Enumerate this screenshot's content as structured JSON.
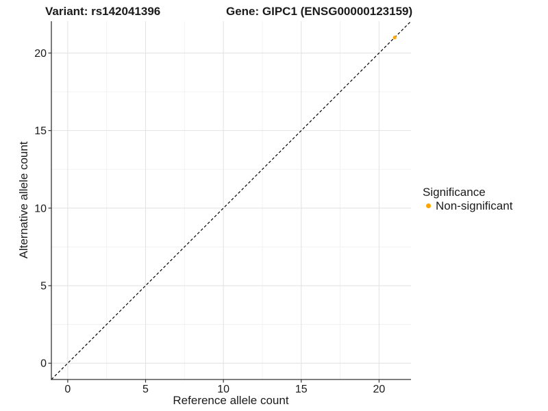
{
  "header": {
    "variant_title": "Variant: rs142041396",
    "gene_title": "Gene: GIPC1 (ENSG00000123159)"
  },
  "legend": {
    "title": "Significance",
    "items": [
      {
        "label": "Non-significant",
        "color": "#FFA500",
        "marker": "circle-icon"
      }
    ]
  },
  "colors": {
    "point": "#FFA500",
    "axis_line": "#333333",
    "tick_text": "#1a1a1a",
    "grid_major": "#e3e3e3",
    "grid_minor": "#f0f0f0",
    "reference_line": "#000000",
    "background": "#ffffff"
  },
  "chart_data": {
    "type": "scatter",
    "title": "Variant: rs142041396    Gene: GIPC1 (ENSG00000123159)",
    "xlabel": "Reference allele count",
    "ylabel": "Alternative allele count",
    "xlim": [
      -1.05,
      22.05
    ],
    "ylim": [
      -1.05,
      22.05
    ],
    "x_ticks": [
      0,
      5,
      10,
      15,
      20
    ],
    "y_ticks": [
      0,
      5,
      10,
      15,
      20
    ],
    "x_minor_ticks": [
      2.5,
      7.5,
      12.5,
      17.5
    ],
    "y_minor_ticks": [
      2.5,
      7.5,
      12.5,
      17.5
    ],
    "grid": "major+minor",
    "legend_position": "right",
    "series": [
      {
        "name": "Non-significant",
        "color": "#FFA500",
        "points": [
          [
            21,
            21
          ]
        ]
      }
    ],
    "reference_line": {
      "type": "identity (y = x)",
      "style": "dashed",
      "color": "#000000"
    }
  }
}
